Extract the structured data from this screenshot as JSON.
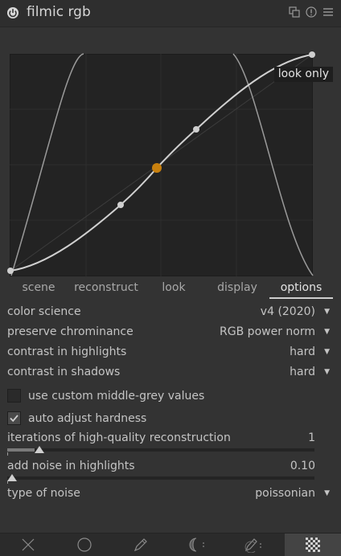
{
  "header": {
    "title": "filmic rgb"
  },
  "graph": {
    "view_label": "look only",
    "tabs": [
      {
        "label": "scene",
        "active": false
      },
      {
        "label": "reconstruct",
        "active": false
      },
      {
        "label": "look",
        "active": false
      },
      {
        "label": "display",
        "active": false
      },
      {
        "label": "options",
        "active": true
      }
    ]
  },
  "options": {
    "color_science": {
      "label": "color science",
      "value": "v4 (2020)"
    },
    "preserve_chrominance": {
      "label": "preserve chrominance",
      "value": "RGB power norm"
    },
    "contrast_highlights": {
      "label": "contrast in highlights",
      "value": "hard"
    },
    "contrast_shadows": {
      "label": "contrast in shadows",
      "value": "hard"
    },
    "custom_middle_grey": {
      "label": "use custom middle-grey values",
      "checked": false
    },
    "auto_hardness": {
      "label": "auto adjust hardness",
      "checked": true
    },
    "iterations": {
      "label": "iterations of high-quality reconstruction",
      "value": "1",
      "fraction": 0.09
    },
    "noise": {
      "label": "add noise in highlights",
      "value": "0.10",
      "fraction": 0.0
    },
    "noise_type": {
      "label": "type of noise",
      "value": "poissonian"
    }
  },
  "bottom_tabs": [
    "close-icon",
    "circle-icon",
    "pencil-icon",
    "drawn-parametric-icon",
    "drawn-pencil-icon",
    "raster-checker-icon"
  ],
  "colors": {
    "accent": "#c8800e",
    "active_tab": "#444444"
  }
}
